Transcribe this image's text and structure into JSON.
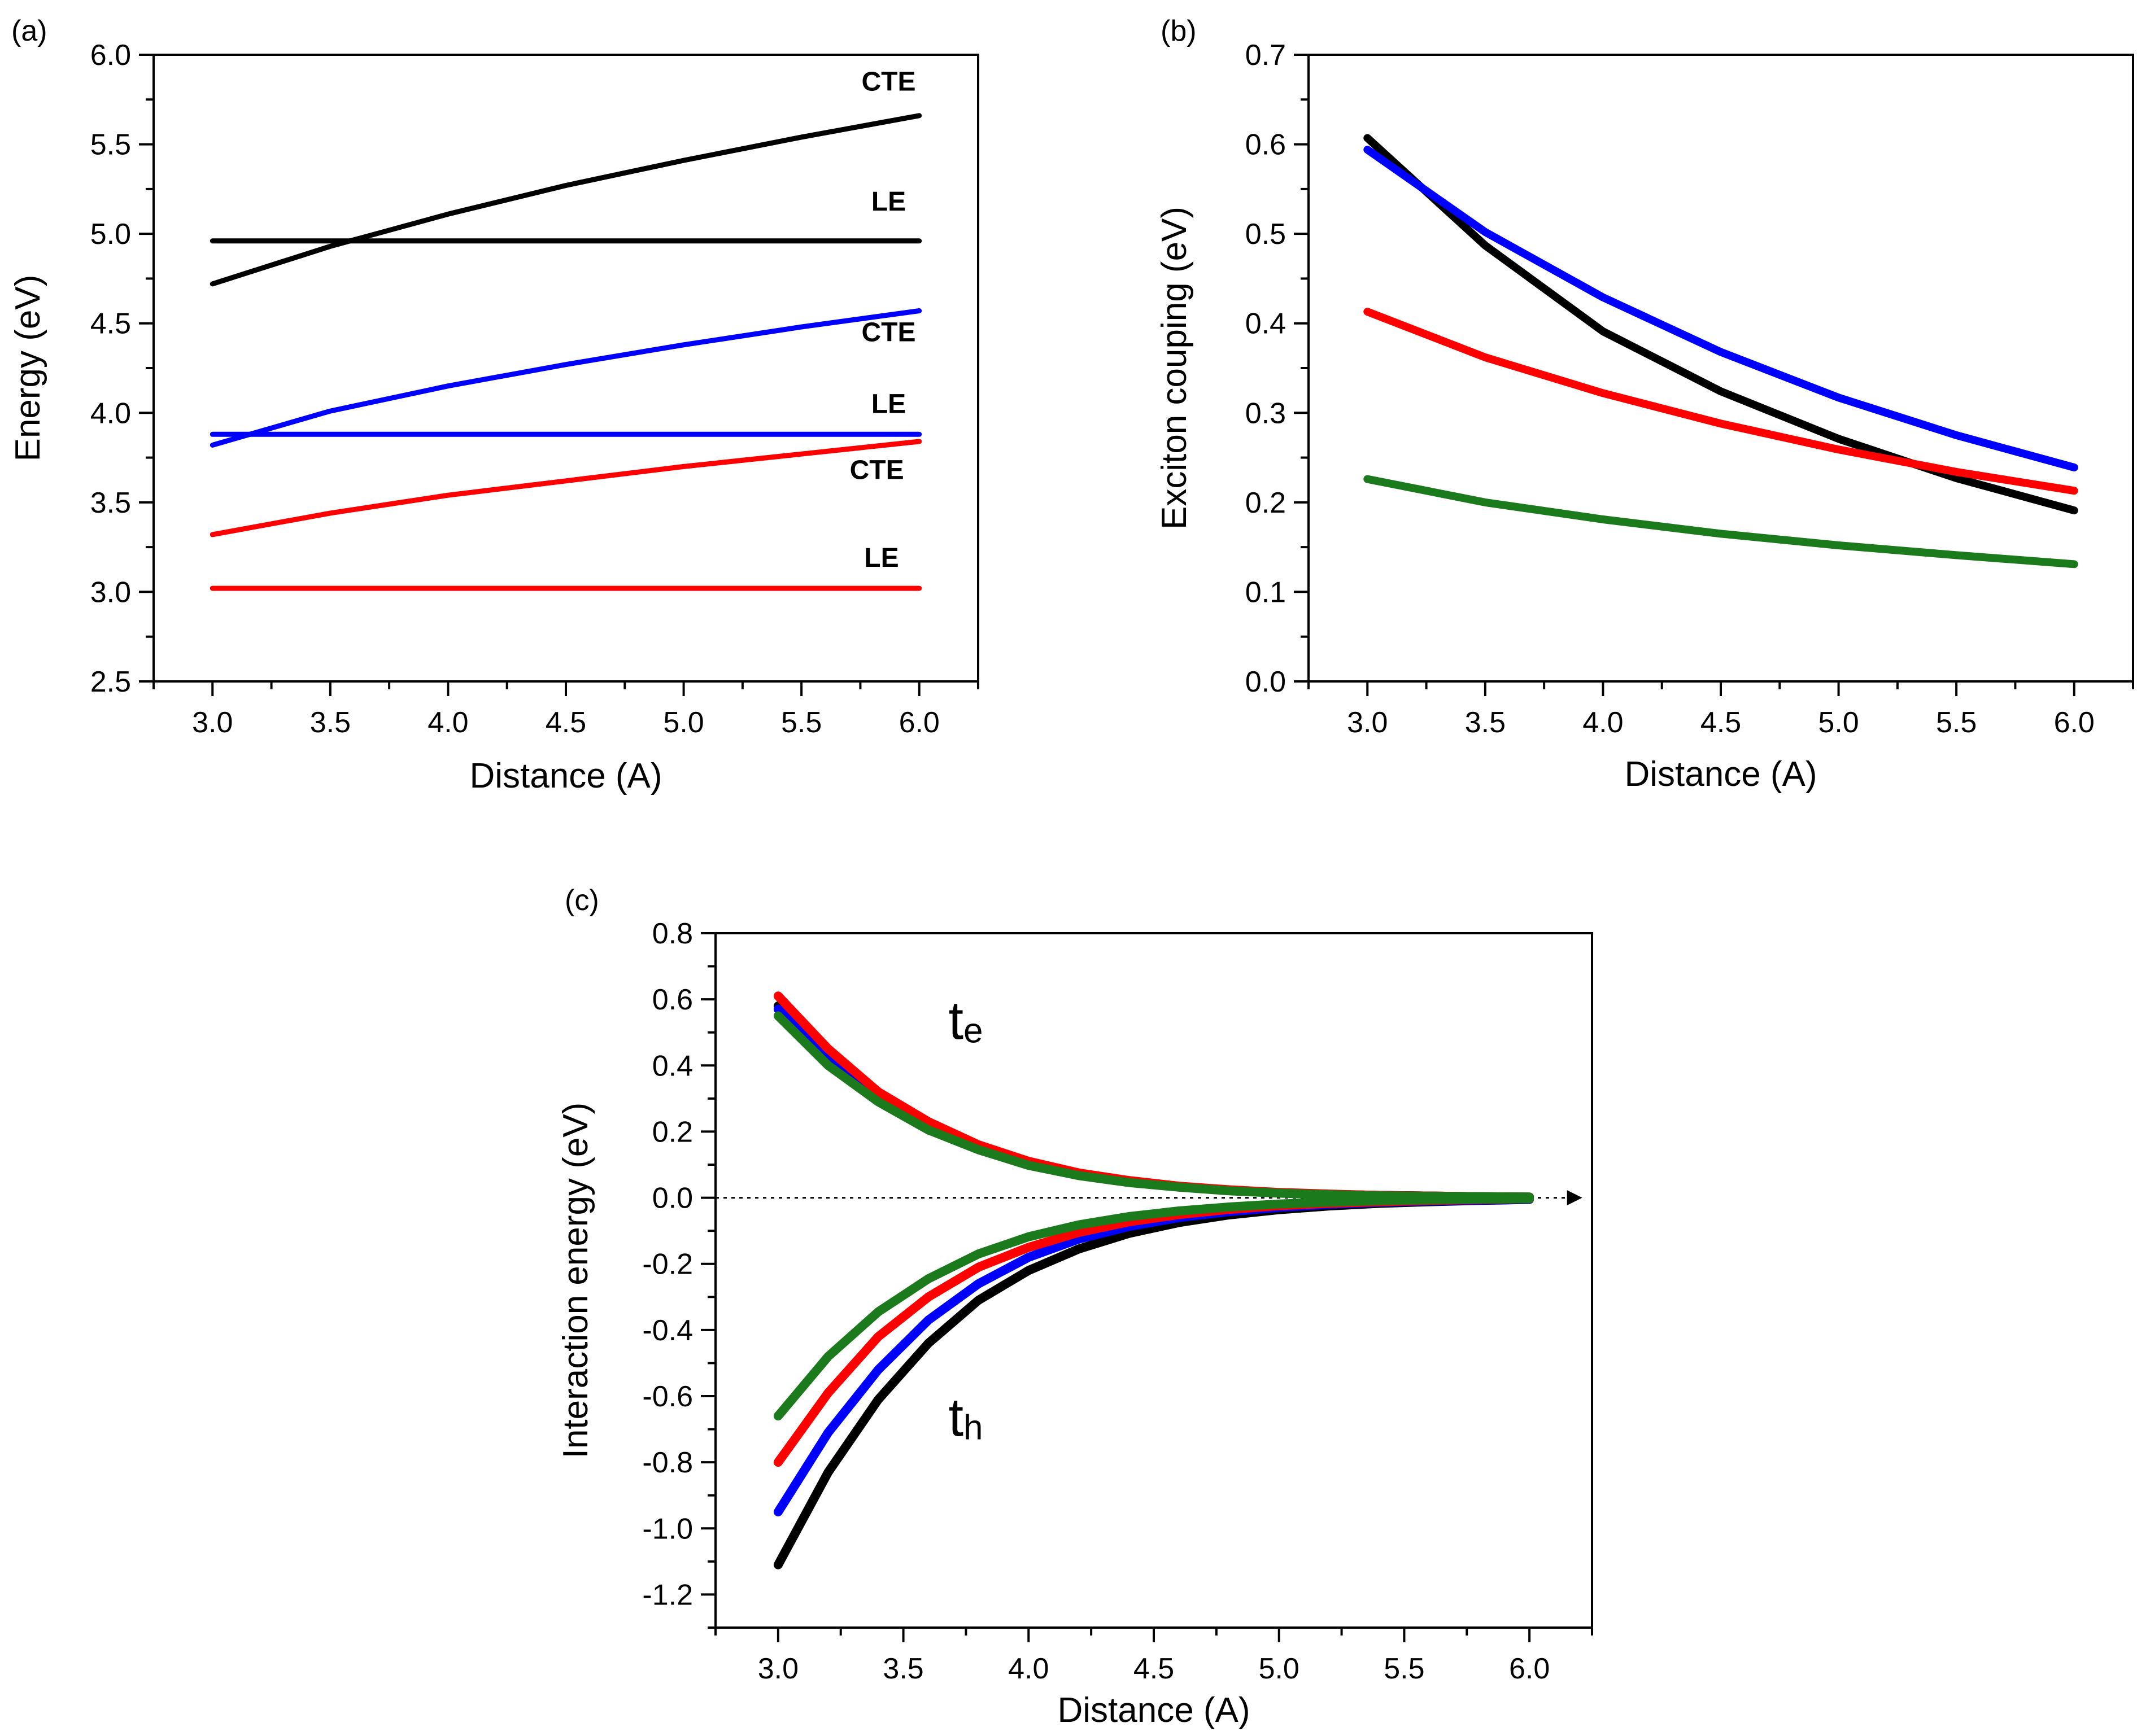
{
  "colors": {
    "black": "#000000",
    "blue": "#0000ff",
    "red": "#ff0000",
    "green": "#1b7a1b",
    "zero_line": "#000000"
  },
  "chart_data": [
    {
      "id": "a",
      "panel_label": "(a)",
      "type": "line",
      "xlabel": "Distance (A)",
      "ylabel": "Energy (eV)",
      "xlim": [
        2.75,
        6.25
      ],
      "ylim": [
        2.5,
        6.0
      ],
      "xticks": [
        "3.0",
        "3.5",
        "4.0",
        "4.5",
        "5.0",
        "5.5",
        "6.0"
      ],
      "yticks": [
        "2.5",
        "3.0",
        "3.5",
        "4.0",
        "4.5",
        "5.0",
        "5.5",
        "6.0"
      ],
      "grid": false,
      "series": [
        {
          "color": "black",
          "kind": "CTE",
          "x": [
            3.0,
            3.5,
            4.0,
            4.5,
            5.0,
            5.5,
            6.0
          ],
          "y": [
            4.72,
            4.93,
            5.11,
            5.27,
            5.41,
            5.54,
            5.66
          ]
        },
        {
          "color": "black",
          "kind": "LE",
          "x": [
            3.0,
            6.0
          ],
          "y": [
            4.96,
            4.96
          ]
        },
        {
          "color": "blue",
          "kind": "CTE",
          "x": [
            3.0,
            3.5,
            4.0,
            4.5,
            5.0,
            5.5,
            6.0
          ],
          "y": [
            3.82,
            4.01,
            4.15,
            4.27,
            4.38,
            4.48,
            4.57
          ]
        },
        {
          "color": "blue",
          "kind": "LE",
          "x": [
            3.0,
            6.0
          ],
          "y": [
            3.88,
            3.88
          ]
        },
        {
          "color": "red",
          "kind": "CTE",
          "x": [
            3.0,
            3.5,
            4.0,
            4.5,
            5.0,
            5.5,
            6.0
          ],
          "y": [
            3.32,
            3.44,
            3.54,
            3.62,
            3.7,
            3.77,
            3.84
          ]
        },
        {
          "color": "red",
          "kind": "LE",
          "x": [
            3.0,
            6.0
          ],
          "y": [
            3.02,
            3.02
          ]
        }
      ],
      "annotations": [
        {
          "text": "CTE",
          "x": 5.87,
          "y": 5.8
        },
        {
          "text": "LE",
          "x": 5.87,
          "y": 5.13
        },
        {
          "text": "CTE",
          "x": 5.87,
          "y": 4.4
        },
        {
          "text": "LE",
          "x": 5.87,
          "y": 4.0
        },
        {
          "text": "CTE",
          "x": 5.82,
          "y": 3.63
        },
        {
          "text": "LE",
          "x": 5.84,
          "y": 3.14
        }
      ]
    },
    {
      "id": "b",
      "panel_label": "(b)",
      "type": "line",
      "xlabel": "Distance (A)",
      "ylabel": "Exciton couping (eV)",
      "xlim": [
        2.75,
        6.25
      ],
      "ylim": [
        0.0,
        0.7
      ],
      "xticks": [
        "3.0",
        "3.5",
        "4.0",
        "4.5",
        "5.0",
        "5.5",
        "6.0"
      ],
      "yticks": [
        "0.0",
        "0.1",
        "0.2",
        "0.3",
        "0.4",
        "0.5",
        "0.6",
        "0.7"
      ],
      "grid": false,
      "series": [
        {
          "color": "black",
          "x": [
            3.0,
            3.5,
            4.0,
            4.5,
            5.0,
            5.5,
            6.0
          ],
          "y": [
            0.607,
            0.487,
            0.391,
            0.324,
            0.271,
            0.227,
            0.191
          ]
        },
        {
          "color": "blue",
          "x": [
            3.0,
            3.5,
            4.0,
            4.5,
            5.0,
            5.5,
            6.0
          ],
          "y": [
            0.594,
            0.502,
            0.429,
            0.368,
            0.317,
            0.275,
            0.239
          ]
        },
        {
          "color": "red",
          "x": [
            3.0,
            3.5,
            4.0,
            4.5,
            5.0,
            5.5,
            6.0
          ],
          "y": [
            0.413,
            0.362,
            0.322,
            0.288,
            0.259,
            0.234,
            0.213
          ]
        },
        {
          "color": "green",
          "x": [
            3.0,
            3.5,
            4.0,
            4.5,
            5.0,
            5.5,
            6.0
          ],
          "y": [
            0.226,
            0.2,
            0.181,
            0.165,
            0.152,
            0.141,
            0.131
          ]
        }
      ]
    },
    {
      "id": "c",
      "panel_label": "(c)",
      "type": "line",
      "xlabel": "Distance (A)",
      "ylabel": "Interaction energy (eV)",
      "xlim": [
        2.75,
        6.25
      ],
      "ylim": [
        -1.3,
        0.8
      ],
      "xticks": [
        "3.0",
        "3.5",
        "4.0",
        "4.5",
        "5.0",
        "5.5",
        "6.0"
      ],
      "yticks": [
        "-1.2",
        "-1.0",
        "-0.8",
        "-0.6",
        "-0.4",
        "-0.2",
        "0.0",
        "0.2",
        "0.4",
        "0.6",
        "0.8"
      ],
      "grid": false,
      "zero_line": {
        "y": 0.0,
        "style": "dotted",
        "arrow": true
      },
      "labels": [
        {
          "base": "t",
          "sub": "e",
          "x": 3.68,
          "y": 0.48
        },
        {
          "base": "t",
          "sub": "h",
          "x": 3.68,
          "y": -0.72
        }
      ],
      "x": [
        3.0,
        3.2,
        3.4,
        3.6,
        3.8,
        4.0,
        4.2,
        4.4,
        4.6,
        4.8,
        5.0,
        5.2,
        5.4,
        5.6,
        5.8,
        6.0
      ],
      "series": [
        {
          "group": "te",
          "color": "black",
          "y": [
            0.58,
            0.43,
            0.31,
            0.22,
            0.155,
            0.105,
            0.072,
            0.05,
            0.034,
            0.023,
            0.015,
            0.01,
            0.007,
            0.005,
            0.003,
            0.002
          ]
        },
        {
          "group": "te",
          "color": "blue",
          "y": [
            0.57,
            0.42,
            0.305,
            0.215,
            0.15,
            0.102,
            0.07,
            0.048,
            0.033,
            0.022,
            0.015,
            0.01,
            0.007,
            0.005,
            0.003,
            0.002
          ]
        },
        {
          "group": "te",
          "color": "red",
          "y": [
            0.61,
            0.45,
            0.32,
            0.23,
            0.16,
            0.11,
            0.075,
            0.052,
            0.035,
            0.024,
            0.016,
            0.011,
            0.007,
            0.005,
            0.003,
            0.002
          ]
        },
        {
          "group": "te",
          "color": "green",
          "y": [
            0.55,
            0.4,
            0.29,
            0.205,
            0.145,
            0.098,
            0.067,
            0.046,
            0.032,
            0.021,
            0.014,
            0.009,
            0.006,
            0.004,
            0.003,
            0.002
          ]
        },
        {
          "group": "th",
          "color": "black",
          "y": [
            -1.11,
            -0.83,
            -0.61,
            -0.44,
            -0.31,
            -0.22,
            -0.155,
            -0.108,
            -0.075,
            -0.052,
            -0.036,
            -0.025,
            -0.017,
            -0.012,
            -0.008,
            -0.005
          ]
        },
        {
          "group": "th",
          "color": "blue",
          "y": [
            -0.95,
            -0.71,
            -0.52,
            -0.37,
            -0.26,
            -0.18,
            -0.125,
            -0.087,
            -0.06,
            -0.042,
            -0.029,
            -0.02,
            -0.014,
            -0.01,
            -0.007,
            -0.004
          ]
        },
        {
          "group": "th",
          "color": "red",
          "y": [
            -0.8,
            -0.59,
            -0.42,
            -0.3,
            -0.21,
            -0.15,
            -0.105,
            -0.073,
            -0.051,
            -0.035,
            -0.024,
            -0.017,
            -0.012,
            -0.008,
            -0.005,
            -0.003
          ]
        },
        {
          "group": "th",
          "color": "green",
          "y": [
            -0.66,
            -0.48,
            -0.345,
            -0.245,
            -0.17,
            -0.118,
            -0.082,
            -0.057,
            -0.04,
            -0.028,
            -0.019,
            -0.013,
            -0.009,
            -0.006,
            -0.004,
            -0.003
          ]
        }
      ]
    }
  ]
}
